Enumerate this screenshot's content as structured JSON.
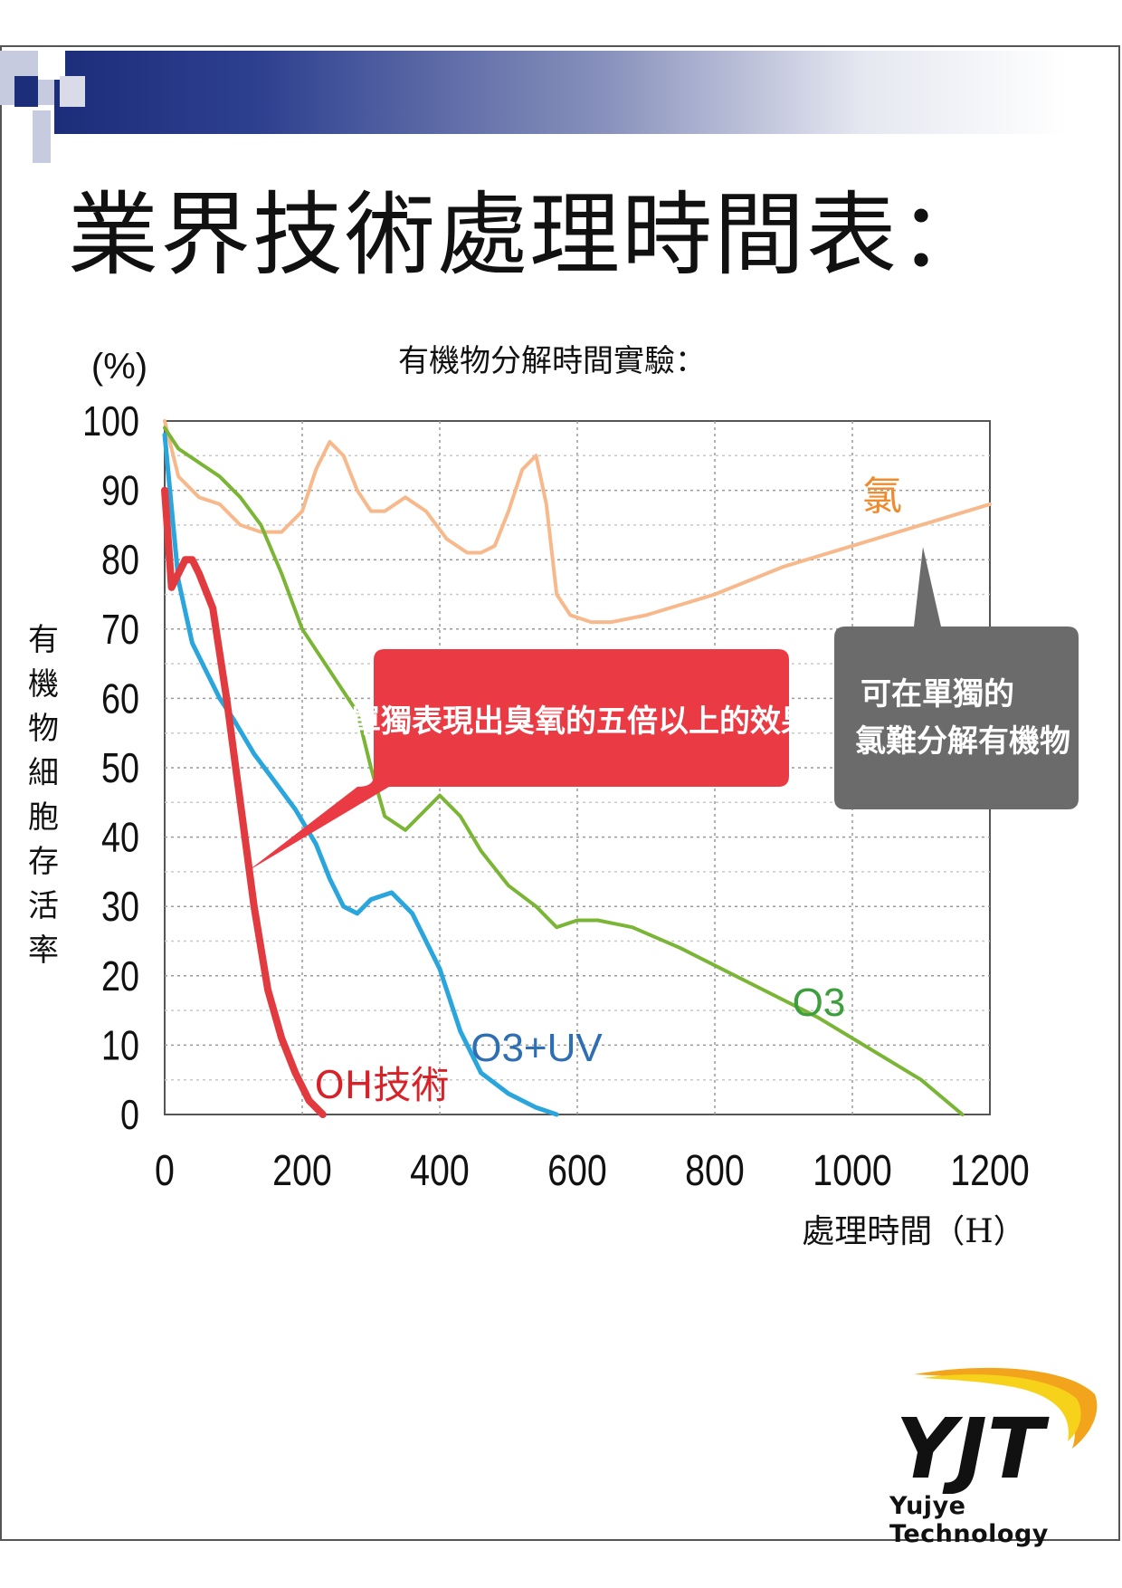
{
  "page": {
    "title": "業界技術處理時間表：",
    "logo_text": "Yujye Technology",
    "logo_mark": "YJT"
  },
  "chart_data": {
    "type": "line",
    "title": "有機物分解時間實驗：",
    "xlabel": "處理時間（H）",
    "ylabel": "有機物細胞存活率",
    "y_unit": "(%)",
    "xlim": [
      0,
      1200
    ],
    "ylim": [
      0,
      100
    ],
    "x_ticks": [
      0,
      200,
      400,
      600,
      800,
      1000,
      1200
    ],
    "y_ticks": [
      0,
      10,
      20,
      30,
      40,
      50,
      60,
      70,
      80,
      90,
      100
    ],
    "grid": true,
    "series": [
      {
        "name": "氯",
        "color": "#f7b98c",
        "x": [
          0,
          20,
          50,
          80,
          110,
          140,
          170,
          200,
          220,
          240,
          260,
          280,
          300,
          320,
          350,
          380,
          410,
          440,
          460,
          480,
          500,
          520,
          540,
          555,
          570,
          590,
          620,
          650,
          700,
          800,
          900,
          1000,
          1100,
          1200
        ],
        "y": [
          100,
          92,
          89,
          88,
          85,
          84,
          84,
          87,
          93,
          97,
          95,
          90,
          87,
          87,
          89,
          87,
          83,
          81,
          81,
          82,
          87,
          93,
          95,
          88,
          75,
          72,
          71,
          71,
          72,
          75,
          79,
          82,
          85,
          88
        ]
      },
      {
        "name": "O3",
        "color": "#7ab535",
        "x": [
          0,
          20,
          50,
          80,
          110,
          140,
          170,
          200,
          240,
          280,
          300,
          320,
          350,
          380,
          400,
          430,
          460,
          500,
          540,
          570,
          600,
          630,
          680,
          750,
          850,
          950,
          1050,
          1100,
          1160
        ],
        "y": [
          99,
          96,
          94,
          92,
          89,
          85,
          78,
          70,
          64,
          58,
          50,
          43,
          41,
          44,
          46,
          43,
          38,
          33,
          30,
          27,
          28,
          28,
          27,
          24,
          19,
          14,
          8,
          5,
          0
        ]
      },
      {
        "name": "O3+UV",
        "color": "#2aa6dc",
        "x": [
          0,
          20,
          40,
          60,
          80,
          100,
          130,
          160,
          190,
          220,
          240,
          260,
          280,
          300,
          330,
          360,
          400,
          430,
          460,
          500,
          540,
          570
        ],
        "y": [
          98,
          77,
          68,
          64,
          60,
          57,
          52,
          48,
          44,
          39,
          34,
          30,
          29,
          31,
          32,
          29,
          21,
          12,
          6,
          3,
          1,
          0
        ]
      },
      {
        "name": "OH技術",
        "color": "#e13a3f",
        "x": [
          0,
          10,
          20,
          30,
          40,
          50,
          70,
          90,
          110,
          130,
          150,
          170,
          190,
          210,
          230
        ],
        "y": [
          90,
          76,
          78,
          80,
          80,
          78,
          73,
          60,
          45,
          30,
          18,
          11,
          6,
          2,
          0
        ]
      }
    ],
    "annotations": {
      "red_callout": "單獨表現出臭氧的五倍以上的效果",
      "gray_callout_line1": "可在單獨的",
      "gray_callout_line2": "氯難分解有機物"
    }
  }
}
